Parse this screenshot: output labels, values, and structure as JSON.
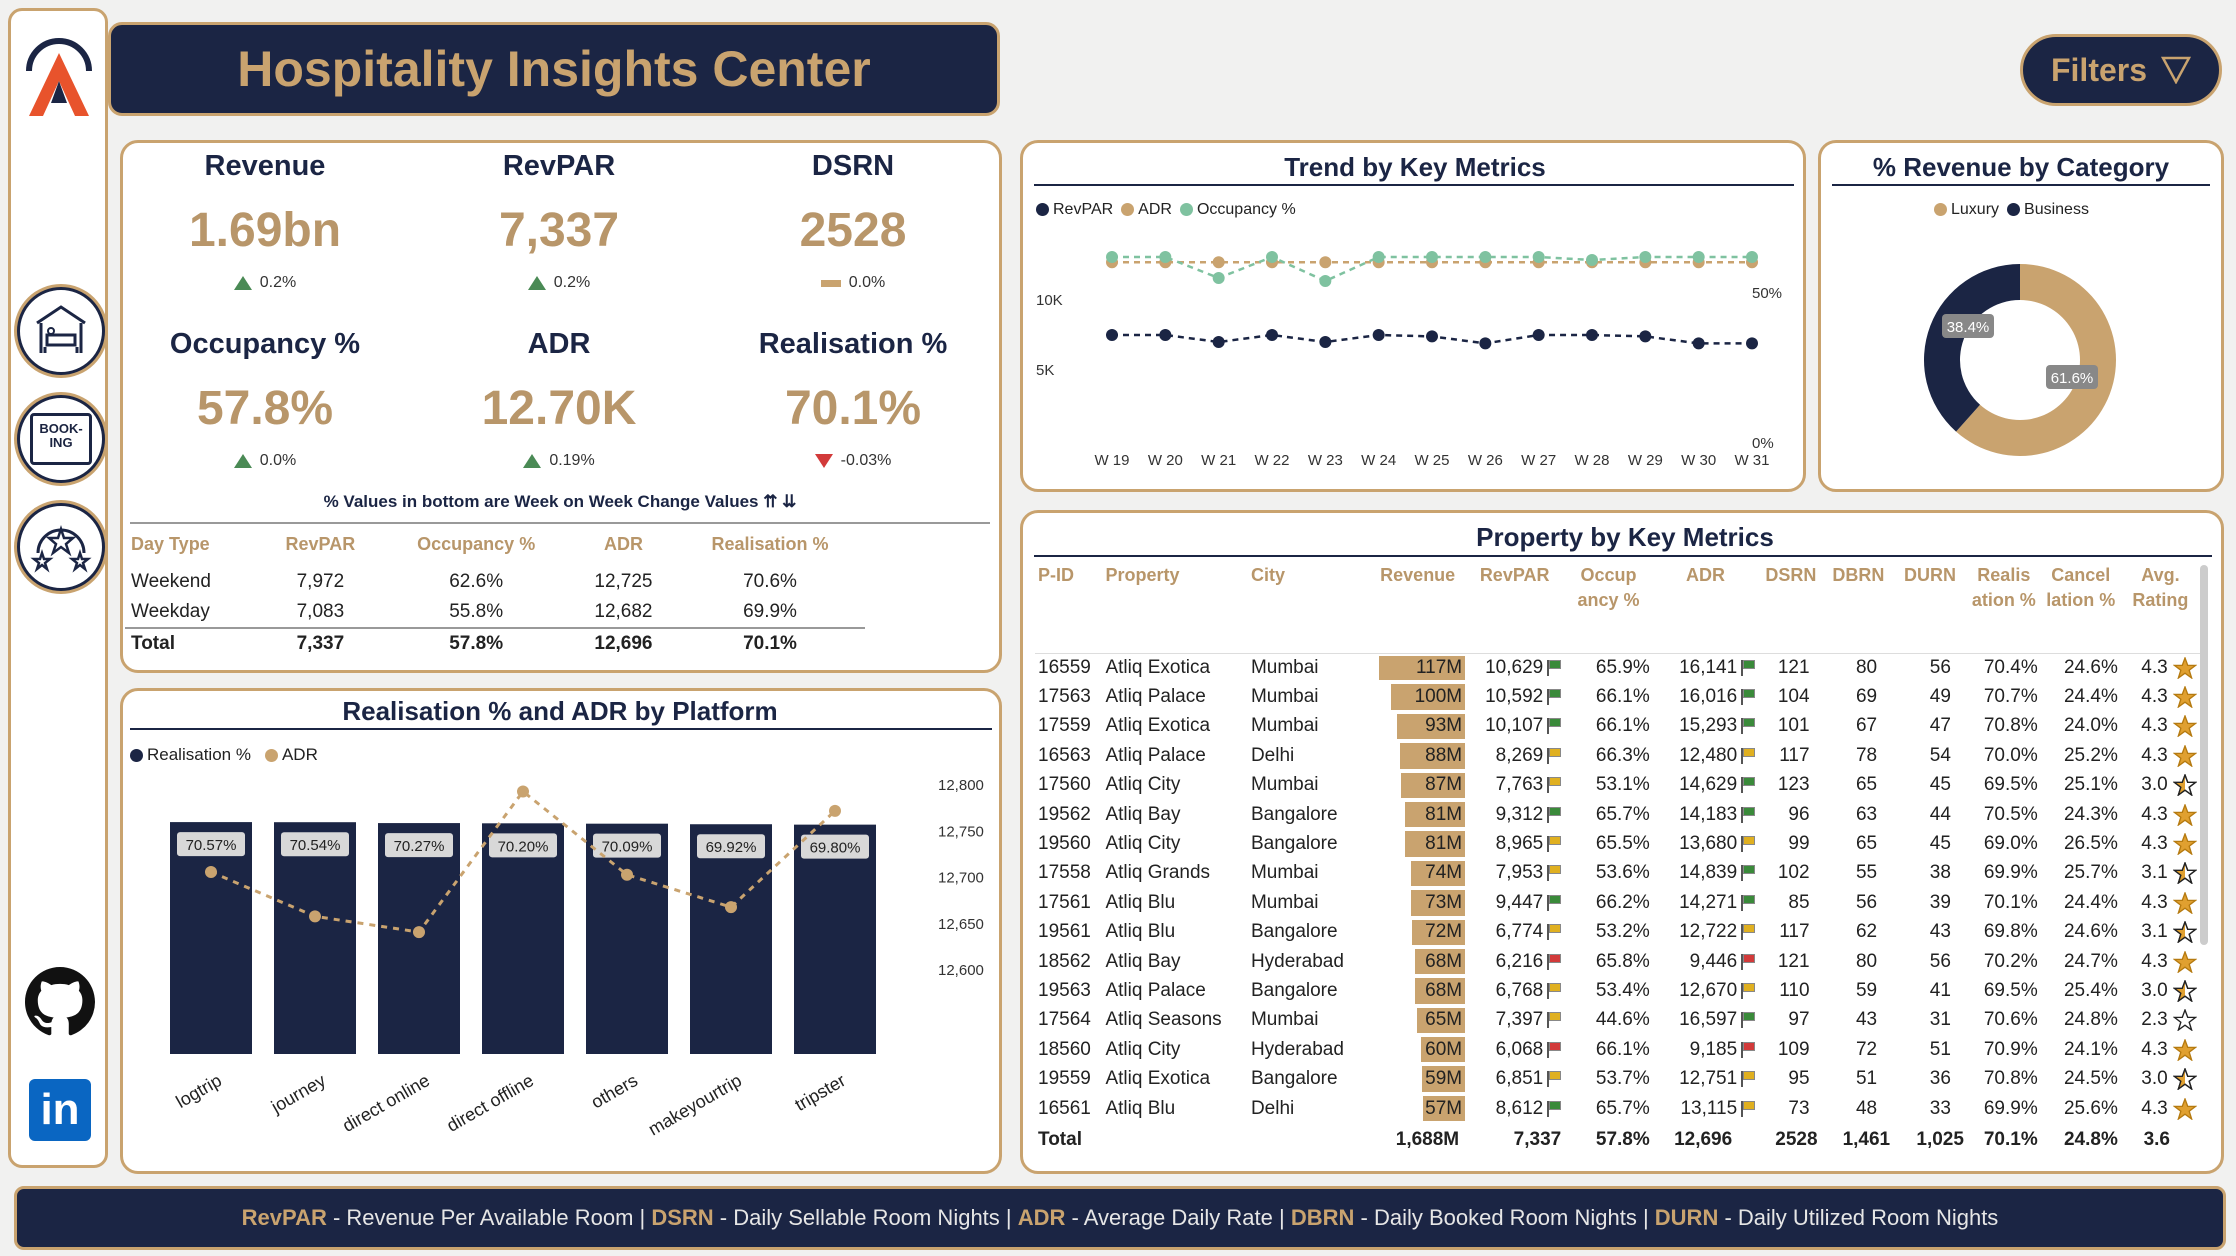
{
  "app": {
    "title": "Hospitality Insights Center",
    "filters_label": "Filters"
  },
  "colors": {
    "navy": "#1b2544",
    "gold": "#c9a36f",
    "teal": "#7fc2a0",
    "up": "#4a8a55",
    "down": "#d23a3a"
  },
  "sidebar": {
    "items": [
      {
        "icon": "hotel-bed-icon"
      },
      {
        "icon": "booking-icon",
        "text": "BOOK-ING"
      },
      {
        "icon": "rating-stars-icon"
      },
      {
        "icon": "github-icon"
      },
      {
        "icon": "linkedin-icon",
        "text": "in"
      }
    ]
  },
  "kpis": [
    {
      "label": "Revenue",
      "value": "1.69bn",
      "change": "0.2%",
      "dir": "up"
    },
    {
      "label": "RevPAR",
      "value": "7,337",
      "change": "0.2%",
      "dir": "up"
    },
    {
      "label": "DSRN",
      "value": "2528",
      "change": "0.0%",
      "dir": "flat"
    },
    {
      "label": "Occupancy %",
      "value": "57.8%",
      "change": "0.0%",
      "dir": "up"
    },
    {
      "label": "ADR",
      "value": "12.70K",
      "change": "0.19%",
      "dir": "up"
    },
    {
      "label": "Realisation %",
      "value": "70.1%",
      "change": "-0.03%",
      "dir": "down"
    }
  ],
  "kpi_note": "% Values in bottom are Week on Week Change Values ⇈ ⇊",
  "day_table": {
    "headers": [
      "Day Type",
      "RevPAR",
      "Occupancy %",
      "ADR",
      "Realisation %"
    ],
    "rows": [
      [
        "Weekend",
        "7,972",
        "62.6%",
        "12,725",
        "70.6%"
      ],
      [
        "Weekday",
        "7,083",
        "55.8%",
        "12,682",
        "69.9%"
      ]
    ],
    "total": [
      "Total",
      "7,337",
      "57.8%",
      "12,696",
      "70.1%"
    ]
  },
  "trend": {
    "title": "Trend by Key Metrics",
    "legend": [
      "RevPAR",
      "ADR",
      "Occupancy %"
    ],
    "left_ticks": [
      "10K",
      "5K"
    ],
    "right_ticks": [
      "50%",
      "0%"
    ]
  },
  "donut": {
    "title": "% Revenue by Category",
    "legend": [
      "Luxury",
      "Business"
    ],
    "labels": [
      "38.4%",
      "61.6%"
    ]
  },
  "platform": {
    "title": "Realisation % and ADR by Platform",
    "legend": [
      "Realisation %",
      "ADR"
    ],
    "right_ticks": [
      "12,800",
      "12,750",
      "12,700",
      "12,650",
      "12,600"
    ]
  },
  "chart_data": [
    {
      "type": "line",
      "title": "Trend by Key Metrics",
      "categories": [
        "W 19",
        "W 20",
        "W 21",
        "W 22",
        "W 23",
        "W 24",
        "W 25",
        "W 26",
        "W 27",
        "W 28",
        "W 29",
        "W 30",
        "W 31"
      ],
      "series": [
        {
          "name": "RevPAR",
          "axis": "left",
          "values": [
            7500,
            7500,
            7000,
            7500,
            7000,
            7500,
            7400,
            6900,
            7500,
            7500,
            7400,
            6900,
            6900
          ]
        },
        {
          "name": "ADR",
          "axis": "left",
          "values": [
            12700,
            12700,
            12700,
            12700,
            12700,
            12700,
            12700,
            12700,
            12700,
            12700,
            12700,
            12700,
            12700
          ]
        },
        {
          "name": "Occupancy %",
          "axis": "right",
          "values": [
            61,
            61,
            54,
            61,
            53,
            61,
            61,
            61,
            61,
            60,
            61,
            61,
            61
          ]
        }
      ],
      "ylim_left": [
        0,
        15000
      ],
      "ylim_right": [
        0,
        70
      ]
    },
    {
      "type": "pie",
      "title": "% Revenue by Category",
      "categories": [
        "Luxury",
        "Business"
      ],
      "values": [
        61.6,
        38.4
      ],
      "colors": [
        "#c9a36f",
        "#1b2544"
      ]
    },
    {
      "type": "bar",
      "title": "Realisation % and ADR by Platform",
      "categories": [
        "logtrip",
        "journey",
        "direct online",
        "direct offline",
        "others",
        "makeyourtrip",
        "tripster"
      ],
      "series": [
        {
          "name": "Realisation %",
          "values": [
            70.57,
            70.54,
            70.27,
            70.2,
            70.09,
            69.92,
            69.8
          ],
          "labels": [
            "70.57%",
            "70.54%",
            "70.27%",
            "70.20%",
            "70.09%",
            "69.92%",
            "69.80%"
          ]
        },
        {
          "name": "ADR",
          "type": "line",
          "values": [
            12706,
            12658,
            12641,
            12793,
            12703,
            12668,
            12772
          ]
        }
      ],
      "ylim_right": [
        12600,
        12800
      ]
    }
  ],
  "property": {
    "title": "Property by Key Metrics",
    "headers": [
      "P-ID",
      "Property",
      "City",
      "Revenue",
      "RevPAR",
      "Occup ancy %",
      "ADR",
      "DSRN",
      "DBRN",
      "DURN",
      "Realis ation %",
      "Cancel lation %",
      "Avg. Rating"
    ],
    "rows": [
      {
        "pid": "16559",
        "name": "Atliq Exotica",
        "city": "Mumbai",
        "rev": "117M",
        "revn": 117,
        "revpar": "10,629",
        "occ": "65.9%",
        "occf": "g",
        "adr": "16,141",
        "adrf": "g",
        "dsrn": "121",
        "dbrn": "80",
        "durn": "56",
        "real": "70.4%",
        "canc": "24.6%",
        "rating": "4.3",
        "stars": "full"
      },
      {
        "pid": "17563",
        "name": "Atliq Palace",
        "city": "Mumbai",
        "rev": "100M",
        "revn": 100,
        "revpar": "10,592",
        "occ": "66.1%",
        "occf": "g",
        "adr": "16,016",
        "adrf": "g",
        "dsrn": "104",
        "dbrn": "69",
        "durn": "49",
        "real": "70.7%",
        "canc": "24.4%",
        "rating": "4.3",
        "stars": "full"
      },
      {
        "pid": "17559",
        "name": "Atliq Exotica",
        "city": "Mumbai",
        "rev": "93M",
        "revn": 93,
        "revpar": "10,107",
        "occ": "66.1%",
        "occf": "g",
        "adr": "15,293",
        "adrf": "g",
        "dsrn": "101",
        "dbrn": "67",
        "durn": "47",
        "real": "70.8%",
        "canc": "24.0%",
        "rating": "4.3",
        "stars": "full"
      },
      {
        "pid": "16563",
        "name": "Atliq Palace",
        "city": "Delhi",
        "rev": "88M",
        "revn": 88,
        "revpar": "8,269",
        "occ": "66.3%",
        "occf": "y",
        "adr": "12,480",
        "adrf": "y",
        "dsrn": "117",
        "dbrn": "78",
        "durn": "54",
        "real": "70.0%",
        "canc": "25.2%",
        "rating": "4.3",
        "stars": "full"
      },
      {
        "pid": "17560",
        "name": "Atliq City",
        "city": "Mumbai",
        "rev": "87M",
        "revn": 87,
        "revpar": "7,763",
        "occ": "53.1%",
        "occf": "y",
        "adr": "14,629",
        "adrf": "g",
        "dsrn": "123",
        "dbrn": "65",
        "durn": "45",
        "real": "69.5%",
        "canc": "25.1%",
        "rating": "3.0",
        "stars": "part"
      },
      {
        "pid": "19562",
        "name": "Atliq Bay",
        "city": "Bangalore",
        "rev": "81M",
        "revn": 81,
        "revpar": "9,312",
        "occ": "65.7%",
        "occf": "g",
        "adr": "14,183",
        "adrf": "g",
        "dsrn": "96",
        "dbrn": "63",
        "durn": "44",
        "real": "70.5%",
        "canc": "24.3%",
        "rating": "4.3",
        "stars": "full"
      },
      {
        "pid": "19560",
        "name": "Atliq City",
        "city": "Bangalore",
        "rev": "81M",
        "revn": 81,
        "revpar": "8,965",
        "occ": "65.5%",
        "occf": "y",
        "adr": "13,680",
        "adrf": "y",
        "dsrn": "99",
        "dbrn": "65",
        "durn": "45",
        "real": "69.0%",
        "canc": "26.5%",
        "rating": "4.3",
        "stars": "full"
      },
      {
        "pid": "17558",
        "name": "Atliq Grands",
        "city": "Mumbai",
        "rev": "74M",
        "revn": 74,
        "revpar": "7,953",
        "occ": "53.6%",
        "occf": "y",
        "adr": "14,839",
        "adrf": "g",
        "dsrn": "102",
        "dbrn": "55",
        "durn": "38",
        "real": "69.9%",
        "canc": "25.7%",
        "rating": "3.1",
        "stars": "part"
      },
      {
        "pid": "17561",
        "name": "Atliq Blu",
        "city": "Mumbai",
        "rev": "73M",
        "revn": 73,
        "revpar": "9,447",
        "occ": "66.2%",
        "occf": "g",
        "adr": "14,271",
        "adrf": "g",
        "dsrn": "85",
        "dbrn": "56",
        "durn": "39",
        "real": "70.1%",
        "canc": "24.4%",
        "rating": "4.3",
        "stars": "full"
      },
      {
        "pid": "19561",
        "name": "Atliq Blu",
        "city": "Bangalore",
        "rev": "72M",
        "revn": 72,
        "revpar": "6,774",
        "occ": "53.2%",
        "occf": "y",
        "adr": "12,722",
        "adrf": "y",
        "dsrn": "117",
        "dbrn": "62",
        "durn": "43",
        "real": "69.8%",
        "canc": "24.6%",
        "rating": "3.1",
        "stars": "part"
      },
      {
        "pid": "18562",
        "name": "Atliq Bay",
        "city": "Hyderabad",
        "rev": "68M",
        "revn": 68,
        "revpar": "6,216",
        "occ": "65.8%",
        "occf": "r",
        "adr": "9,446",
        "adrf": "r",
        "dsrn": "121",
        "dbrn": "80",
        "durn": "56",
        "real": "70.2%",
        "canc": "24.7%",
        "rating": "4.3",
        "stars": "full"
      },
      {
        "pid": "19563",
        "name": "Atliq Palace",
        "city": "Bangalore",
        "rev": "68M",
        "revn": 68,
        "revpar": "6,768",
        "occ": "53.4%",
        "occf": "y",
        "adr": "12,670",
        "adrf": "y",
        "dsrn": "110",
        "dbrn": "59",
        "durn": "41",
        "real": "69.5%",
        "canc": "25.4%",
        "rating": "3.0",
        "stars": "part"
      },
      {
        "pid": "17564",
        "name": "Atliq Seasons",
        "city": "Mumbai",
        "rev": "65M",
        "revn": 65,
        "revpar": "7,397",
        "occ": "44.6%",
        "occf": "y",
        "adr": "16,597",
        "adrf": "g",
        "dsrn": "97",
        "dbrn": "43",
        "durn": "31",
        "real": "70.6%",
        "canc": "24.8%",
        "rating": "2.3",
        "stars": "empty"
      },
      {
        "pid": "18560",
        "name": "Atliq City",
        "city": "Hyderabad",
        "rev": "60M",
        "revn": 60,
        "revpar": "6,068",
        "occ": "66.1%",
        "occf": "r",
        "adr": "9,185",
        "adrf": "r",
        "dsrn": "109",
        "dbrn": "72",
        "durn": "51",
        "real": "70.9%",
        "canc": "24.1%",
        "rating": "4.3",
        "stars": "full"
      },
      {
        "pid": "19559",
        "name": "Atliq Exotica",
        "city": "Bangalore",
        "rev": "59M",
        "revn": 59,
        "revpar": "6,851",
        "occ": "53.7%",
        "occf": "y",
        "adr": "12,751",
        "adrf": "y",
        "dsrn": "95",
        "dbrn": "51",
        "durn": "36",
        "real": "70.8%",
        "canc": "24.5%",
        "rating": "3.0",
        "stars": "part"
      },
      {
        "pid": "16561",
        "name": "Atliq Blu",
        "city": "Delhi",
        "rev": "57M",
        "revn": 57,
        "revpar": "8,612",
        "occ": "65.7%",
        "occf": "g",
        "adr": "13,115",
        "adrf": "y",
        "dsrn": "73",
        "dbrn": "48",
        "durn": "33",
        "real": "69.9%",
        "canc": "25.6%",
        "rating": "4.3",
        "stars": "full"
      }
    ],
    "total": {
      "label": "Total",
      "rev": "1,688M",
      "revpar": "7,337",
      "occ": "57.8%",
      "adr": "12,696",
      "dsrn": "2528",
      "dbrn": "1,461",
      "durn": "1,025",
      "real": "70.1%",
      "canc": "24.8%",
      "rating": "3.6"
    }
  },
  "footer": [
    {
      "abbr": "RevPAR",
      "desc": " - Revenue Per Available Room | "
    },
    {
      "abbr": "DSRN",
      "desc": " - Daily Sellable Room Nights | "
    },
    {
      "abbr": "ADR",
      "desc": " - Average Daily Rate | "
    },
    {
      "abbr": "DBRN",
      "desc": " - Daily Booked Room Nights | "
    },
    {
      "abbr": "DURN",
      "desc": " - Daily Utilized Room Nights"
    }
  ]
}
